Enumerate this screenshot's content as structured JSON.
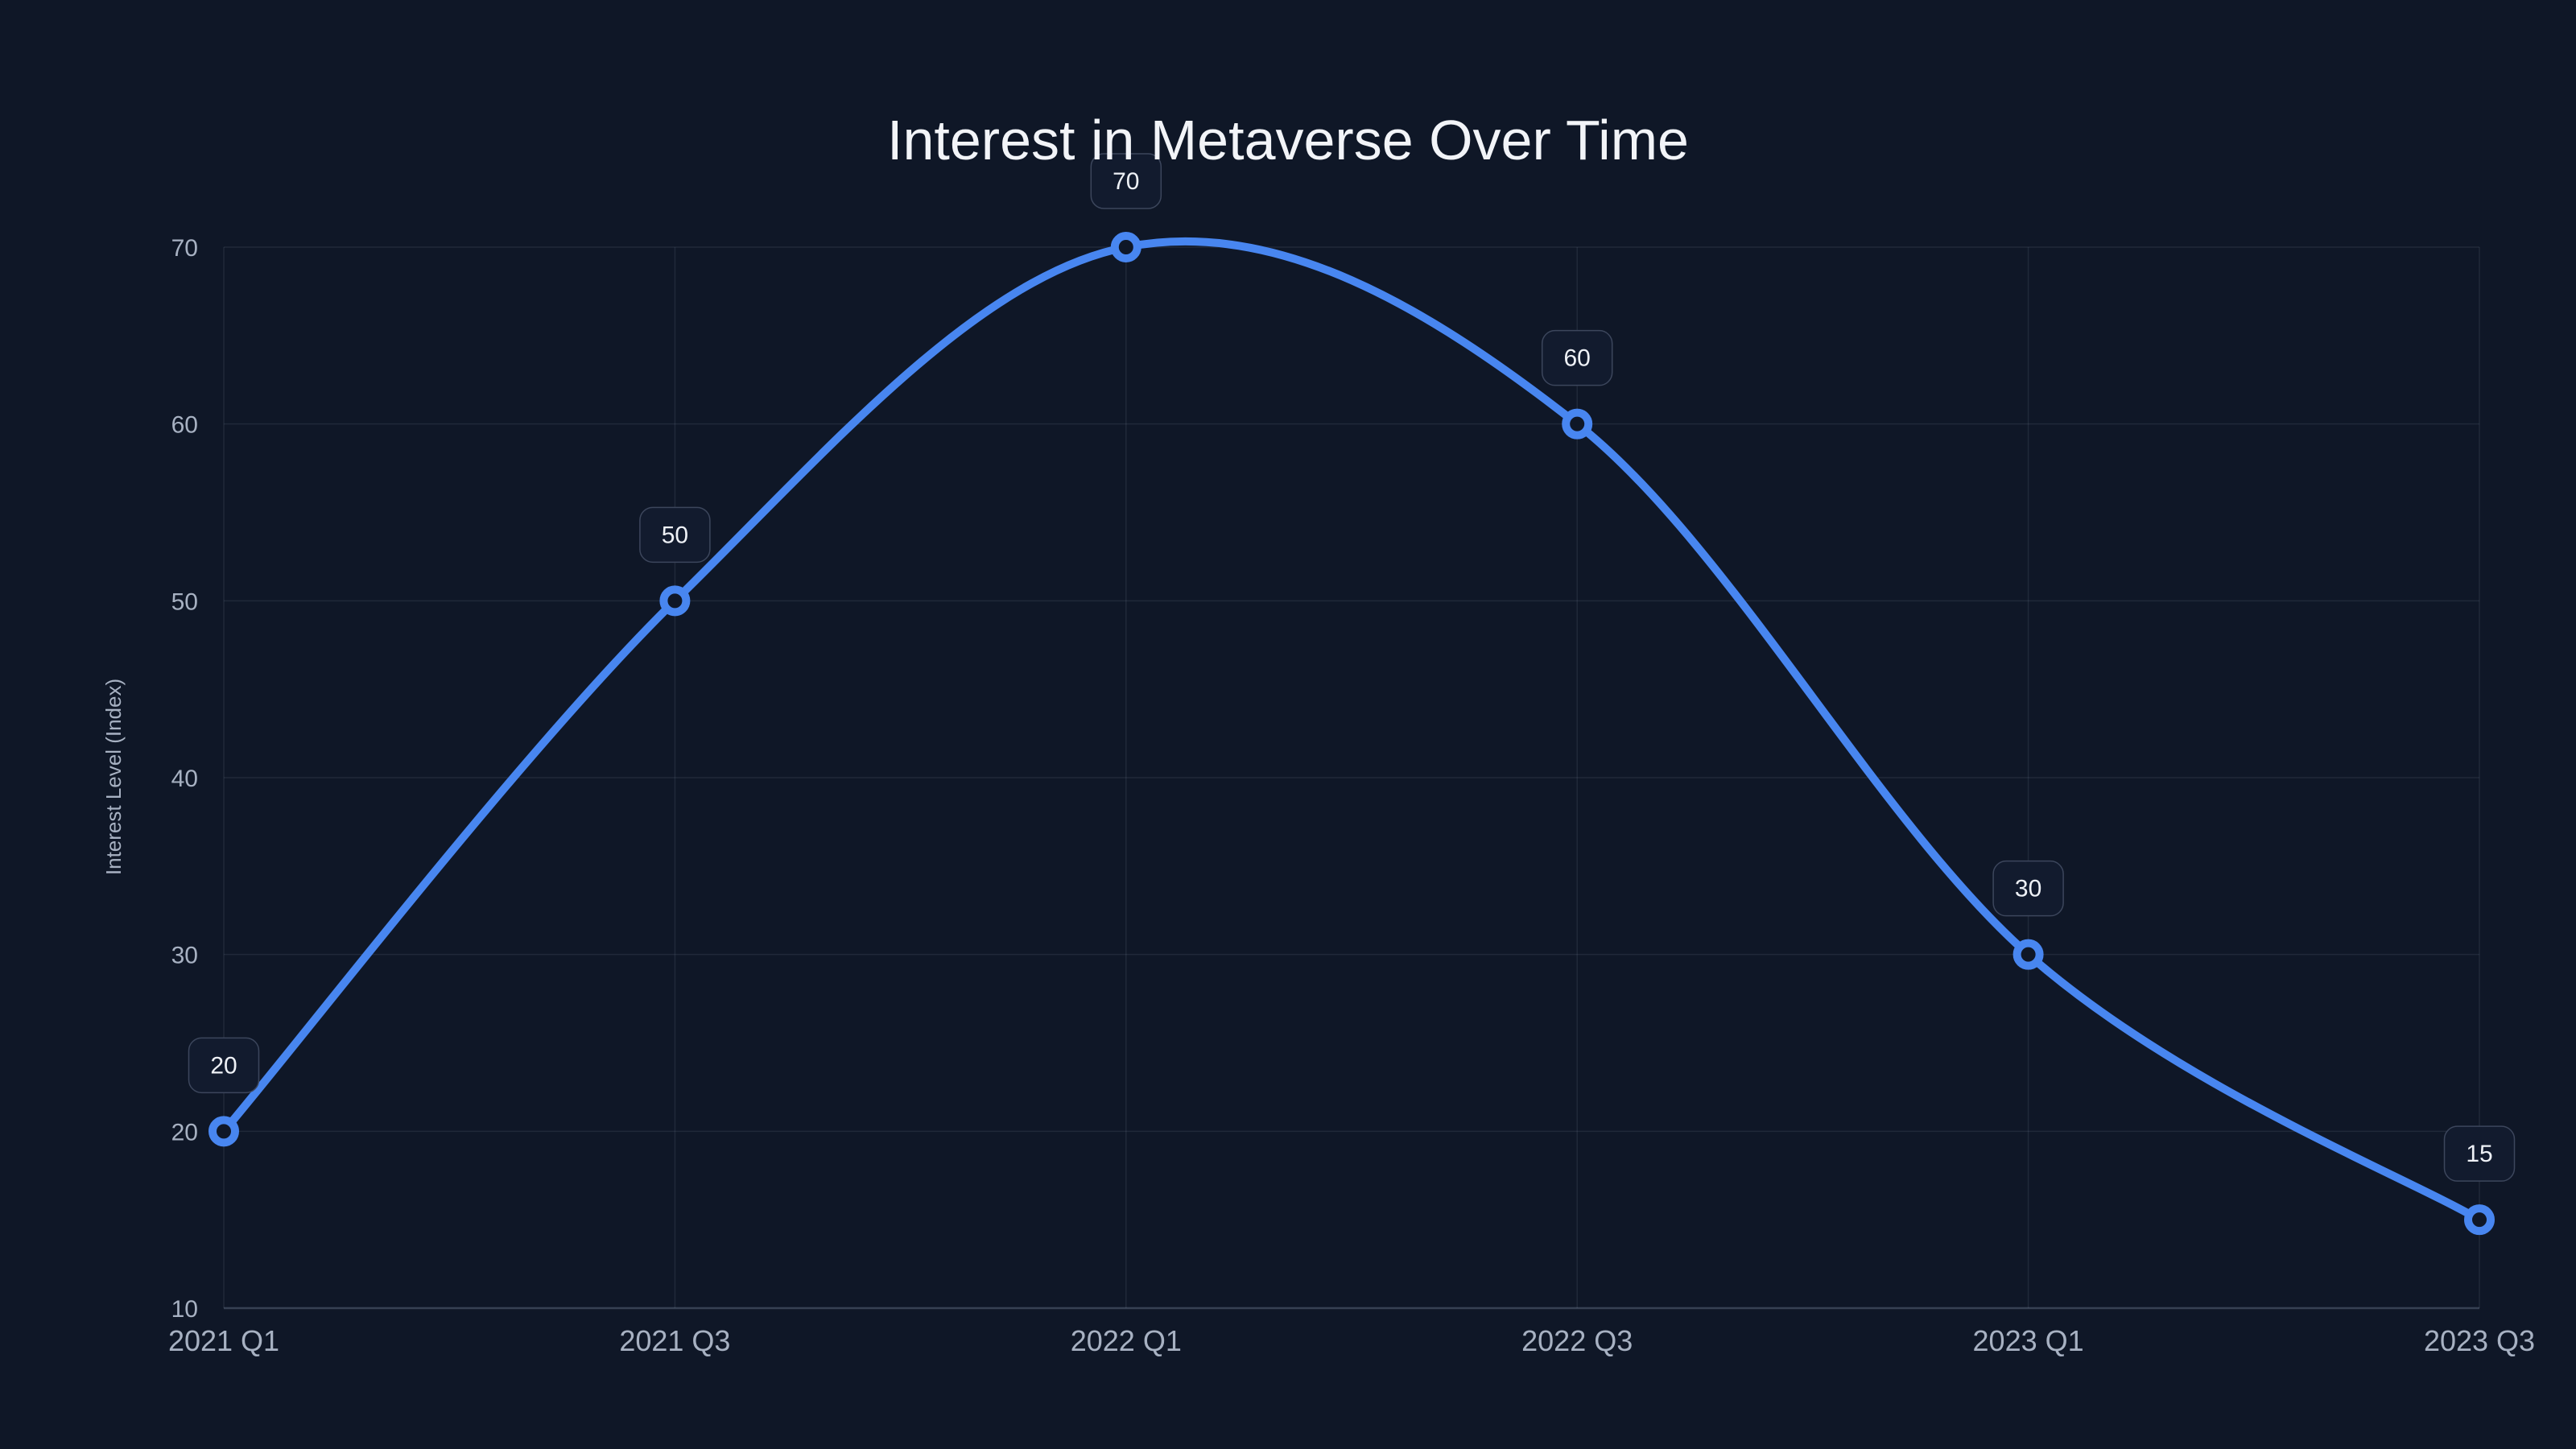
{
  "chart_data": {
    "type": "line",
    "title": "Interest in Metaverse Over Time",
    "categories": [
      "2021 Q1",
      "2021 Q3",
      "2022 Q1",
      "2022 Q3",
      "2023 Q1",
      "2023 Q3"
    ],
    "values": [
      20,
      50,
      70,
      60,
      30,
      15
    ],
    "xlabel": "",
    "ylabel": "Interest Level (Index)",
    "ylim": [
      10,
      70
    ],
    "yticks": [
      10,
      20,
      30,
      40,
      50,
      60,
      70
    ],
    "grid": true,
    "legend": false,
    "smooth": true,
    "data_labels": [
      20,
      50,
      70,
      60,
      30,
      15
    ],
    "colors": {
      "background": "#0f1727",
      "line": "#4886f0",
      "point_fill": "#0f1727",
      "title_text": "#f2f4f8",
      "tick_text": "#a7b1c2",
      "grid_line": "rgba(148,163,184,0.13)",
      "axis_line": "rgba(148,163,184,0.30)",
      "badge_fill": "#121b2e",
      "badge_border": "#3c465c",
      "badge_text": "#eef1f6"
    }
  }
}
